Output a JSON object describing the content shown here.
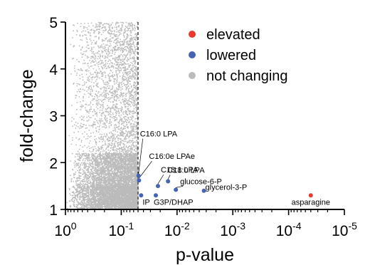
{
  "chart_data": {
    "type": "scatter",
    "xlabel": "p-value",
    "ylabel": "fold-change",
    "x_scale": "log-reversed",
    "xlim": [
      1,
      1e-05
    ],
    "ylim": [
      1,
      5
    ],
    "x_ticks": [
      {
        "value": 1,
        "base": "10",
        "exp": "0"
      },
      {
        "value": 0.1,
        "base": "10",
        "exp": "-1"
      },
      {
        "value": 0.01,
        "base": "10",
        "exp": "-2"
      },
      {
        "value": 0.001,
        "base": "10",
        "exp": "-3"
      },
      {
        "value": 0.0001,
        "base": "10",
        "exp": "-4"
      },
      {
        "value": 1e-05,
        "base": "10",
        "exp": "-5"
      }
    ],
    "y_ticks": [
      {
        "value": 1,
        "label": "1"
      },
      {
        "value": 2,
        "label": "2"
      },
      {
        "value": 3,
        "label": "3"
      },
      {
        "value": 4,
        "label": "4"
      },
      {
        "value": 5,
        "label": "5"
      }
    ],
    "threshold_line": {
      "x": 0.05,
      "style": "dashed"
    },
    "legend_position": "top-right",
    "grid": false,
    "series": [
      {
        "name": "elevated",
        "color": "#e8392f",
        "points": [
          {
            "x": 4e-05,
            "y": 1.3,
            "label": "asparagine"
          }
        ]
      },
      {
        "name": "lowered",
        "color": "#4565b4",
        "points": [
          {
            "x": 0.049,
            "y": 1.72,
            "label": "C16:0 LPA"
          },
          {
            "x": 0.048,
            "y": 1.62,
            "label": "C16:0e LPAe"
          },
          {
            "x": 0.022,
            "y": 1.5,
            "label": "C18:1 LPA"
          },
          {
            "x": 0.0145,
            "y": 1.6,
            "label": "C18:0 LPA"
          },
          {
            "x": 0.0105,
            "y": 1.42,
            "label": "glucose-6-P"
          },
          {
            "x": 0.0033,
            "y": 1.4,
            "label": "glycerol-3-P"
          },
          {
            "x": 0.044,
            "y": 1.3,
            "label": "IP"
          },
          {
            "x": 0.024,
            "y": 1.3,
            "label": "G3P/DHAP"
          }
        ]
      },
      {
        "name": "not changing",
        "color": "#bbbbbb",
        "points": "dense cloud of unchanged metabolites, p-value 1 to 0.05, fold-change 1 to 5"
      }
    ]
  }
}
